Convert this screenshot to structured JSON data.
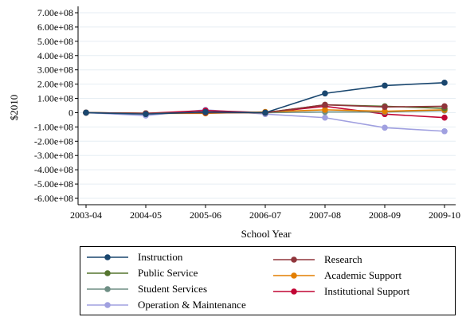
{
  "chart_data": {
    "type": "line",
    "title": "",
    "xlabel": "School Year",
    "ylabel": "$2010",
    "categories": [
      "2003-04",
      "2004-05",
      "2005-06",
      "2006-07",
      "2007-08",
      "2008-09",
      "2009-10"
    ],
    "ylim": [
      -600000000,
      700000000
    ],
    "yticks": [
      700000000,
      600000000,
      500000000,
      400000000,
      300000000,
      200000000,
      100000000,
      0,
      -100000000,
      -200000000,
      -300000000,
      -400000000,
      -500000000,
      -600000000
    ],
    "ytick_labels": [
      "7.00e+08",
      "6.00e+08",
      "5.00e+08",
      "4.00e+08",
      "3.00e+08",
      "2.00e+08",
      "1.00e+08",
      "0",
      "-1.00e+08",
      "-2.00e+08",
      "-3.00e+08",
      "-4.00e+08",
      "-5.00e+08",
      "-6.00e+08"
    ],
    "grid": true,
    "legend_position": "bottom",
    "series": [
      {
        "name": "Instruction",
        "color": "#1a476f",
        "values": [
          0,
          -10000000,
          5000000,
          0,
          135000000,
          190000000,
          210000000
        ]
      },
      {
        "name": "Research",
        "color": "#90353b",
        "values": [
          0,
          -5000000,
          0,
          0,
          55000000,
          40000000,
          45000000
        ]
      },
      {
        "name": "Public Service",
        "color": "#55752f",
        "values": [
          0,
          -5000000,
          0,
          0,
          55000000,
          45000000,
          30000000
        ]
      },
      {
        "name": "Academic Support",
        "color": "#e37e00",
        "values": [
          0,
          -5000000,
          -5000000,
          5000000,
          20000000,
          10000000,
          20000000
        ]
      },
      {
        "name": "Student Services",
        "color": "#6e8e84",
        "values": [
          0,
          -5000000,
          0,
          0,
          5000000,
          5000000,
          15000000
        ]
      },
      {
        "name": "Institutional Support",
        "color": "#c10534",
        "values": [
          0,
          -5000000,
          15000000,
          0,
          45000000,
          -10000000,
          -35000000
        ]
      },
      {
        "name": "Operation & Maintenance",
        "color": "#a0a0e0",
        "values": [
          0,
          -20000000,
          20000000,
          -10000000,
          -35000000,
          -105000000,
          -130000000
        ]
      }
    ]
  }
}
